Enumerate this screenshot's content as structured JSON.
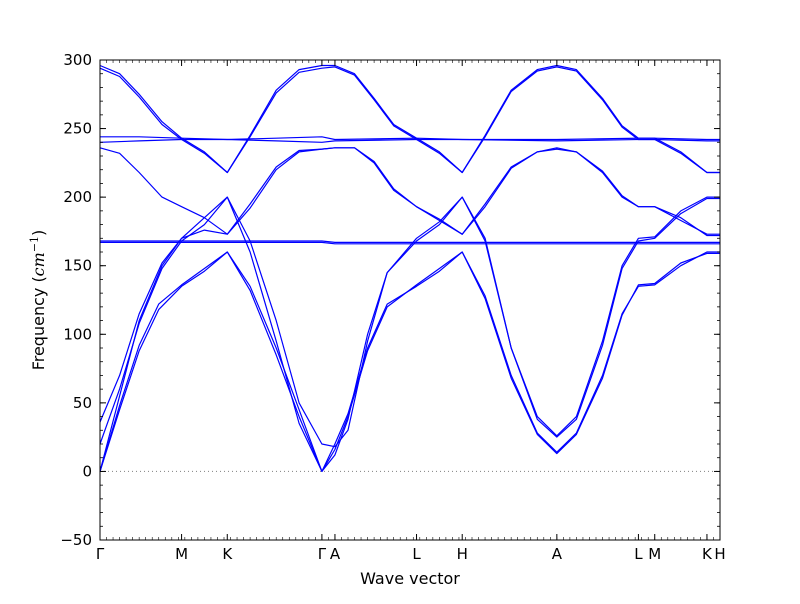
{
  "chart_data": {
    "type": "line",
    "xlabel": "Wave vector",
    "ylabel_text": "Frequency (",
    "ylabel_unit": "cm",
    "ylabel_exp": "−1",
    "ylabel_close": ")",
    "ylim": [
      -50,
      300
    ],
    "yticks": [
      -50,
      0,
      50,
      100,
      150,
      200,
      250,
      300
    ],
    "ytick_labels": [
      "−50",
      "0",
      "50",
      "100",
      "150",
      "200",
      "250",
      "300"
    ],
    "xlim": [
      0,
      9.5
    ],
    "xticks": [
      {
        "pos": 0.0,
        "label": "Γ"
      },
      {
        "pos": 1.25,
        "label": "M"
      },
      {
        "pos": 1.95,
        "label": "K"
      },
      {
        "pos": 3.4,
        "label": "Γ"
      },
      {
        "pos": 3.6,
        "label": "A"
      },
      {
        "pos": 4.85,
        "label": "L"
      },
      {
        "pos": 5.55,
        "label": "H"
      },
      {
        "pos": 7.0,
        "label": "A"
      },
      {
        "pos": 8.25,
        "label": "L"
      },
      {
        "pos": 8.5,
        "label": "M"
      },
      {
        "pos": 9.3,
        "label": "K"
      },
      {
        "pos": 9.5,
        "label": "H"
      }
    ],
    "zero_line": {
      "y": 0,
      "style": "dotted",
      "color": "#808080"
    },
    "line_color": "#0000ff",
    "series": [
      {
        "values": [
          [
            0,
            0
          ],
          [
            0.3,
            45
          ],
          [
            0.6,
            88
          ],
          [
            0.9,
            118
          ],
          [
            1.25,
            135
          ],
          [
            1.6,
            146
          ],
          [
            1.95,
            160
          ],
          [
            2.3,
            135
          ],
          [
            2.7,
            90
          ],
          [
            3.05,
            45
          ],
          [
            3.4,
            0
          ],
          [
            3.6,
            20
          ],
          [
            3.8,
            42
          ],
          [
            4.1,
            90
          ],
          [
            4.4,
            122
          ],
          [
            4.85,
            135
          ],
          [
            5.2,
            146
          ],
          [
            5.55,
            160
          ],
          [
            5.9,
            128
          ],
          [
            6.3,
            70
          ],
          [
            6.7,
            28
          ],
          [
            7.0,
            14
          ],
          [
            7.3,
            28
          ],
          [
            7.7,
            70
          ],
          [
            8.0,
            115
          ],
          [
            8.25,
            135
          ],
          [
            8.5,
            136
          ],
          [
            8.9,
            150
          ],
          [
            9.3,
            160
          ],
          [
            9.5,
            160
          ]
        ]
      },
      {
        "values": [
          [
            0,
            0
          ],
          [
            0.3,
            48
          ],
          [
            0.6,
            92
          ],
          [
            0.9,
            122
          ],
          [
            1.25,
            136
          ],
          [
            1.6,
            148
          ],
          [
            1.95,
            160
          ],
          [
            2.3,
            132
          ],
          [
            2.7,
            85
          ],
          [
            3.05,
            40
          ],
          [
            3.4,
            0
          ],
          [
            3.6,
            16
          ],
          [
            3.8,
            40
          ],
          [
            4.1,
            88
          ],
          [
            4.4,
            120
          ],
          [
            4.85,
            136
          ],
          [
            5.2,
            148
          ],
          [
            5.55,
            160
          ],
          [
            5.9,
            126
          ],
          [
            6.3,
            68
          ],
          [
            6.7,
            27
          ],
          [
            7.0,
            13
          ],
          [
            7.3,
            27
          ],
          [
            7.7,
            68
          ],
          [
            8.0,
            114
          ],
          [
            8.25,
            136
          ],
          [
            8.5,
            137
          ],
          [
            8.9,
            152
          ],
          [
            9.3,
            159
          ],
          [
            9.5,
            159
          ]
        ]
      },
      {
        "values": [
          [
            0,
            0
          ],
          [
            0.3,
            55
          ],
          [
            0.6,
            110
          ],
          [
            0.95,
            150
          ],
          [
            1.25,
            170
          ],
          [
            1.6,
            185
          ],
          [
            1.95,
            200
          ],
          [
            2.3,
            160
          ],
          [
            2.7,
            95
          ],
          [
            3.05,
            35
          ],
          [
            3.4,
            0
          ],
          [
            3.6,
            12
          ],
          [
            3.8,
            38
          ],
          [
            4.1,
            100
          ],
          [
            4.4,
            145
          ],
          [
            4.85,
            170
          ],
          [
            5.2,
            182
          ],
          [
            5.55,
            200
          ],
          [
            5.9,
            170
          ],
          [
            6.3,
            90
          ],
          [
            6.7,
            40
          ],
          [
            7.0,
            26
          ],
          [
            7.3,
            40
          ],
          [
            7.7,
            95
          ],
          [
            8.0,
            150
          ],
          [
            8.25,
            170
          ],
          [
            8.5,
            171
          ],
          [
            8.9,
            190
          ],
          [
            9.3,
            200
          ],
          [
            9.5,
            200
          ]
        ]
      },
      {
        "values": [
          [
            0,
            20
          ],
          [
            0.3,
            60
          ],
          [
            0.6,
            108
          ],
          [
            0.95,
            148
          ],
          [
            1.25,
            168
          ],
          [
            1.6,
            180
          ],
          [
            1.95,
            200
          ],
          [
            2.3,
            168
          ],
          [
            2.7,
            110
          ],
          [
            3.05,
            50
          ],
          [
            3.4,
            20
          ],
          [
            3.6,
            18
          ],
          [
            3.8,
            30
          ],
          [
            4.1,
            95
          ],
          [
            4.4,
            145
          ],
          [
            4.85,
            168
          ],
          [
            5.2,
            180
          ],
          [
            5.55,
            200
          ],
          [
            5.9,
            168
          ],
          [
            6.3,
            90
          ],
          [
            6.7,
            38
          ],
          [
            7.0,
            25
          ],
          [
            7.3,
            38
          ],
          [
            7.7,
            92
          ],
          [
            8.0,
            148
          ],
          [
            8.25,
            168
          ],
          [
            8.5,
            170
          ],
          [
            8.9,
            188
          ],
          [
            9.3,
            199
          ],
          [
            9.5,
            199
          ]
        ]
      },
      {
        "values": [
          [
            0,
            36
          ],
          [
            0.3,
            70
          ],
          [
            0.6,
            115
          ],
          [
            0.95,
            152
          ],
          [
            1.25,
            170
          ],
          [
            1.6,
            176
          ],
          [
            1.95,
            173
          ],
          [
            2.3,
            195
          ],
          [
            2.7,
            222
          ],
          [
            3.05,
            234
          ],
          [
            3.4,
            235
          ],
          [
            3.6,
            236
          ],
          [
            3.9,
            236
          ],
          [
            4.2,
            225
          ],
          [
            4.5,
            205
          ],
          [
            4.85,
            193
          ],
          [
            5.2,
            183
          ],
          [
            5.55,
            173
          ],
          [
            5.9,
            195
          ],
          [
            6.3,
            222
          ],
          [
            6.7,
            233
          ],
          [
            7.0,
            235
          ],
          [
            7.3,
            233
          ],
          [
            7.7,
            218
          ],
          [
            8.0,
            200
          ],
          [
            8.25,
            193
          ],
          [
            8.5,
            193
          ],
          [
            8.9,
            183
          ],
          [
            9.3,
            173
          ],
          [
            9.5,
            173
          ]
        ]
      },
      {
        "values": [
          [
            0,
            236
          ],
          [
            0.3,
            232
          ],
          [
            0.6,
            218
          ],
          [
            0.95,
            200
          ],
          [
            1.25,
            193
          ],
          [
            1.6,
            185
          ],
          [
            1.95,
            173
          ],
          [
            2.3,
            192
          ],
          [
            2.7,
            220
          ],
          [
            3.05,
            233
          ],
          [
            3.4,
            235
          ],
          [
            3.6,
            236
          ],
          [
            3.9,
            236
          ],
          [
            4.2,
            226
          ],
          [
            4.5,
            206
          ],
          [
            4.85,
            193
          ],
          [
            5.2,
            184
          ],
          [
            5.55,
            173
          ],
          [
            5.9,
            193
          ],
          [
            6.3,
            221
          ],
          [
            6.7,
            233
          ],
          [
            7.0,
            236
          ],
          [
            7.3,
            233
          ],
          [
            7.7,
            219
          ],
          [
            8.0,
            201
          ],
          [
            8.25,
            193
          ],
          [
            8.5,
            193
          ],
          [
            8.9,
            185
          ],
          [
            9.3,
            172
          ],
          [
            9.5,
            172
          ]
        ]
      },
      {
        "values": [
          [
            0,
            167
          ],
          [
            1.25,
            167
          ],
          [
            1.95,
            167
          ],
          [
            3.4,
            167
          ],
          [
            3.6,
            166
          ],
          [
            4.85,
            166
          ],
          [
            5.55,
            166
          ],
          [
            7.0,
            166
          ],
          [
            8.25,
            166
          ],
          [
            8.5,
            166
          ],
          [
            9.3,
            166
          ],
          [
            9.5,
            166
          ]
        ]
      },
      {
        "values": [
          [
            0,
            168
          ],
          [
            1.25,
            168
          ],
          [
            1.95,
            168
          ],
          [
            3.4,
            168
          ],
          [
            3.6,
            167
          ],
          [
            4.85,
            167
          ],
          [
            5.55,
            167
          ],
          [
            7.0,
            167
          ],
          [
            8.25,
            167
          ],
          [
            8.5,
            167
          ],
          [
            9.3,
            167
          ],
          [
            9.5,
            167
          ]
        ]
      },
      {
        "values": [
          [
            0,
            240
          ],
          [
            0.6,
            241
          ],
          [
            1.25,
            242
          ],
          [
            1.95,
            242
          ],
          [
            2.7,
            241
          ],
          [
            3.4,
            240
          ],
          [
            3.6,
            241
          ],
          [
            4.85,
            242
          ],
          [
            5.55,
            242
          ],
          [
            7.0,
            241
          ],
          [
            8.25,
            242
          ],
          [
            8.5,
            242
          ],
          [
            9.3,
            241
          ],
          [
            9.5,
            241
          ]
        ]
      },
      {
        "values": [
          [
            0,
            244
          ],
          [
            0.6,
            244
          ],
          [
            1.25,
            243
          ],
          [
            1.95,
            242
          ],
          [
            2.7,
            243
          ],
          [
            3.4,
            244
          ],
          [
            3.6,
            242
          ],
          [
            4.85,
            243
          ],
          [
            5.55,
            242
          ],
          [
            7.0,
            242
          ],
          [
            8.25,
            243
          ],
          [
            8.5,
            243
          ],
          [
            9.3,
            242
          ],
          [
            9.5,
            242
          ]
        ]
      },
      {
        "values": [
          [
            0,
            296
          ],
          [
            0.3,
            290
          ],
          [
            0.6,
            275
          ],
          [
            0.95,
            255
          ],
          [
            1.25,
            243
          ],
          [
            1.6,
            233
          ],
          [
            1.95,
            218
          ],
          [
            2.3,
            245
          ],
          [
            2.7,
            278
          ],
          [
            3.05,
            293
          ],
          [
            3.4,
            296
          ],
          [
            3.6,
            296
          ],
          [
            3.9,
            290
          ],
          [
            4.2,
            272
          ],
          [
            4.5,
            253
          ],
          [
            4.85,
            243
          ],
          [
            5.2,
            233
          ],
          [
            5.55,
            218
          ],
          [
            5.9,
            245
          ],
          [
            6.3,
            278
          ],
          [
            6.7,
            293
          ],
          [
            7.0,
            296
          ],
          [
            7.3,
            293
          ],
          [
            7.7,
            272
          ],
          [
            8.0,
            252
          ],
          [
            8.25,
            243
          ],
          [
            8.5,
            243
          ],
          [
            8.9,
            233
          ],
          [
            9.3,
            218
          ],
          [
            9.5,
            218
          ]
        ]
      },
      {
        "values": [
          [
            0,
            294
          ],
          [
            0.3,
            288
          ],
          [
            0.6,
            273
          ],
          [
            0.95,
            253
          ],
          [
            1.25,
            242
          ],
          [
            1.6,
            232
          ],
          [
            1.95,
            218
          ],
          [
            2.3,
            244
          ],
          [
            2.7,
            276
          ],
          [
            3.05,
            291
          ],
          [
            3.4,
            294
          ],
          [
            3.6,
            295
          ],
          [
            3.9,
            289
          ],
          [
            4.2,
            271
          ],
          [
            4.5,
            252
          ],
          [
            4.85,
            242
          ],
          [
            5.2,
            232
          ],
          [
            5.55,
            218
          ],
          [
            5.9,
            244
          ],
          [
            6.3,
            277
          ],
          [
            6.7,
            292
          ],
          [
            7.0,
            295
          ],
          [
            7.3,
            292
          ],
          [
            7.7,
            271
          ],
          [
            8.0,
            251
          ],
          [
            8.25,
            242
          ],
          [
            8.5,
            242
          ],
          [
            8.9,
            232
          ],
          [
            9.3,
            218
          ],
          [
            9.5,
            218
          ]
        ]
      }
    ]
  }
}
